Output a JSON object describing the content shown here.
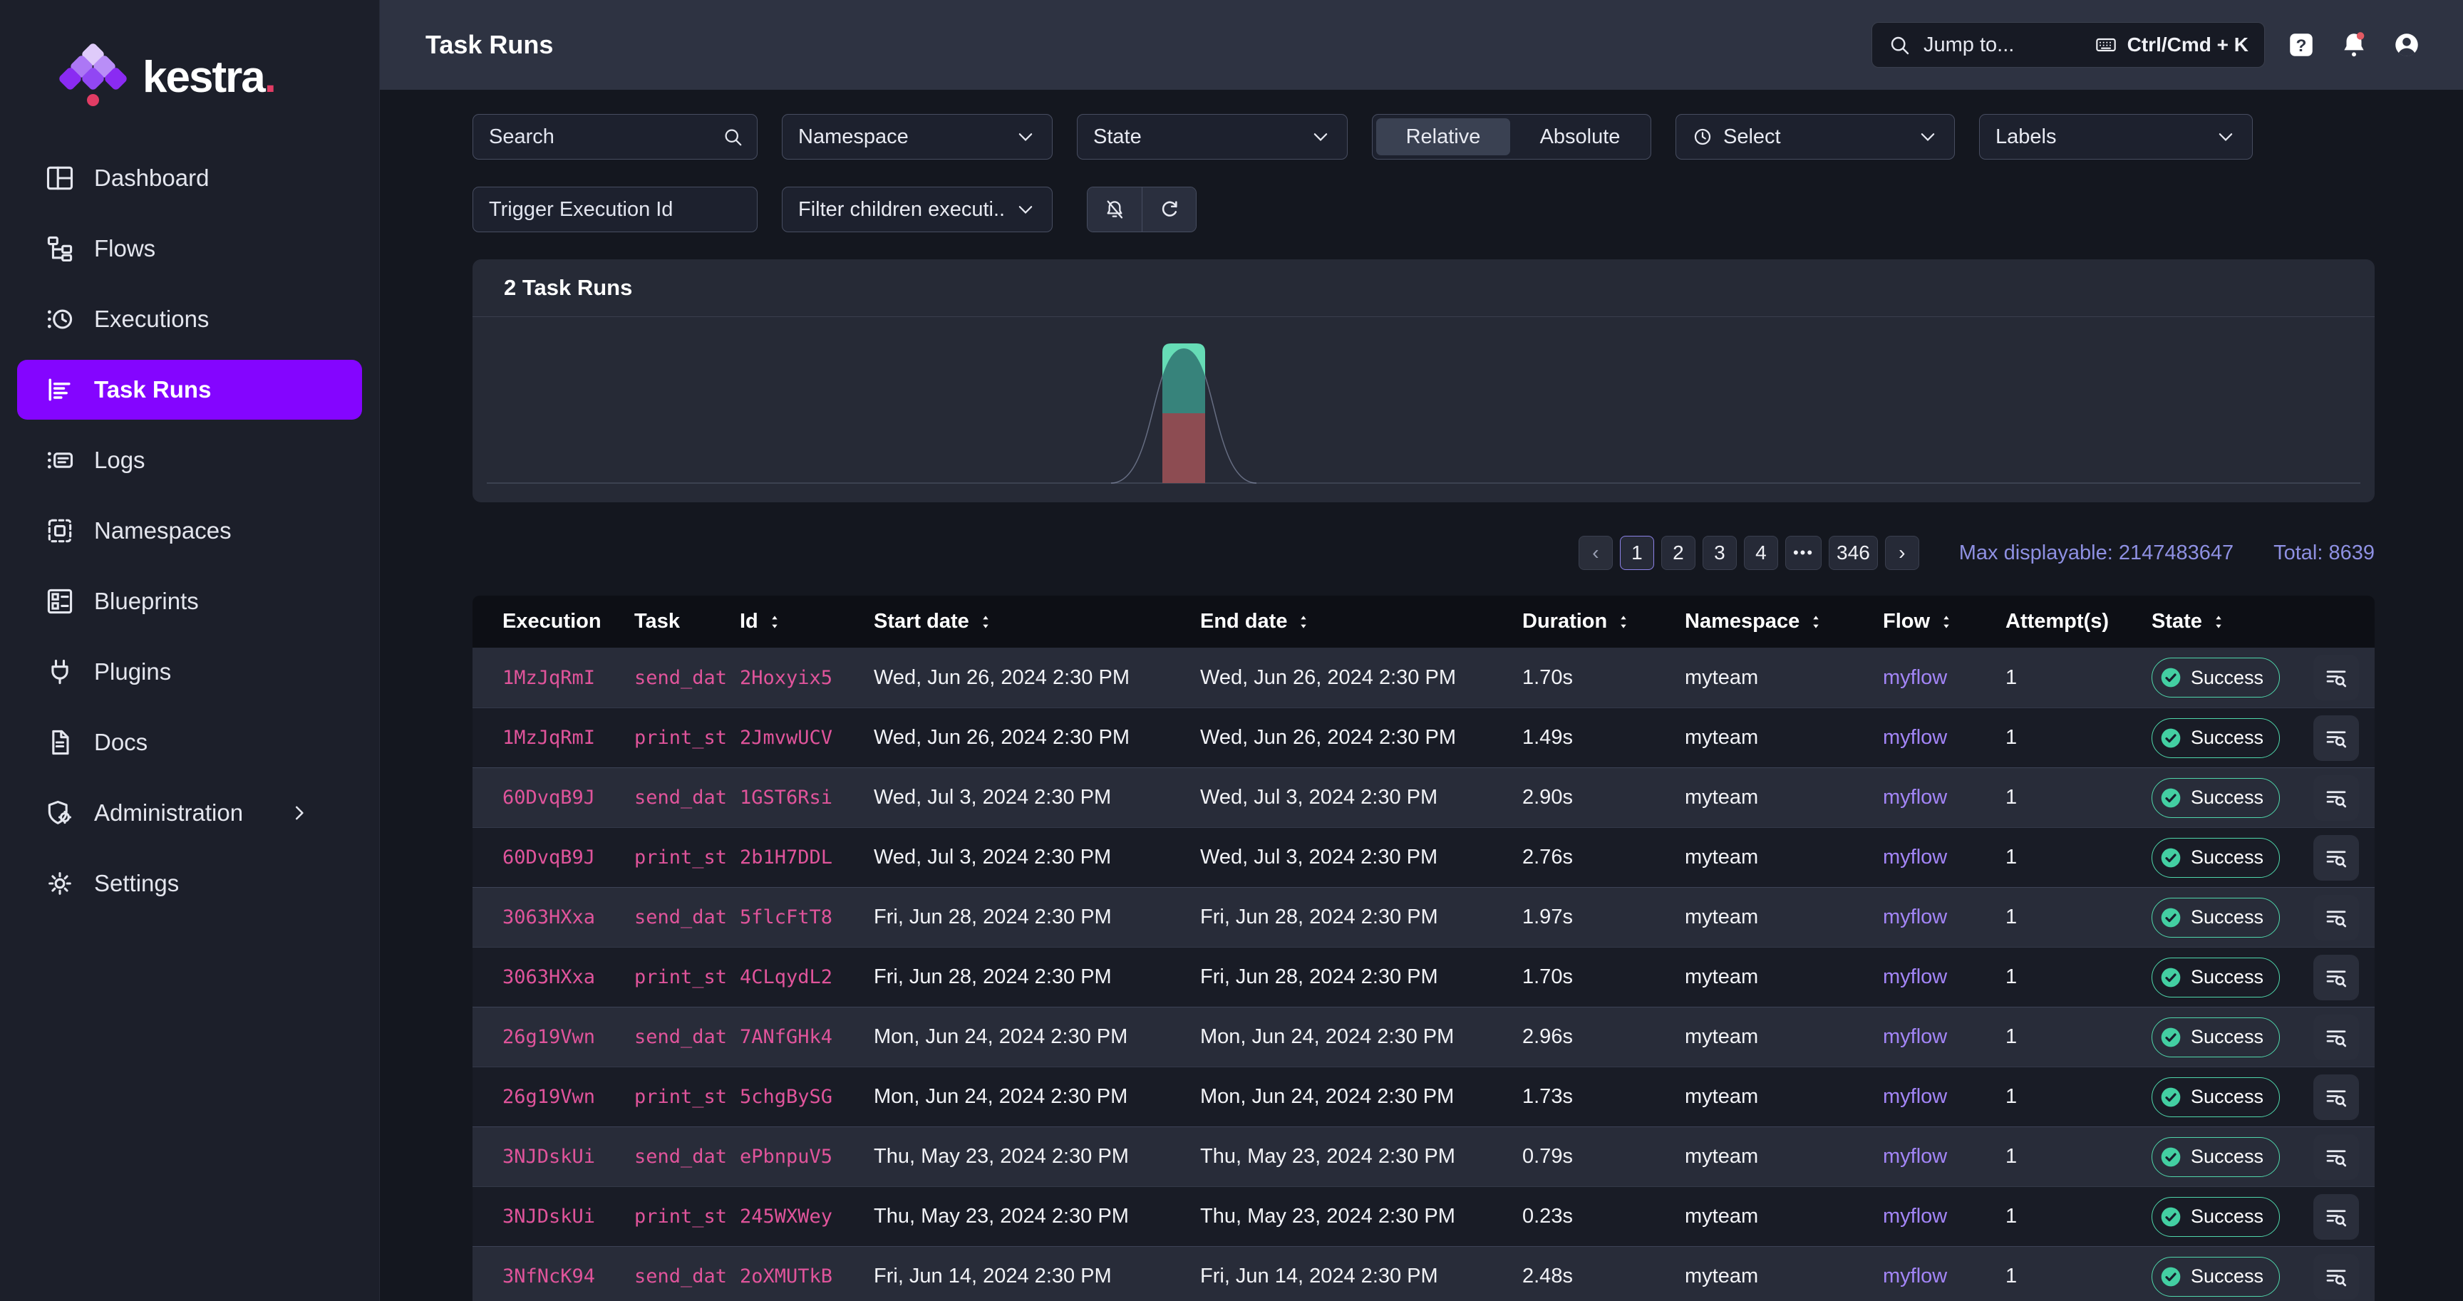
{
  "brand": {
    "name": "kestra",
    "dot": "."
  },
  "sidebar": {
    "items": [
      {
        "id": "dashboard",
        "label": "Dashboard",
        "icon": "dashboard",
        "active": false
      },
      {
        "id": "flows",
        "label": "Flows",
        "icon": "flows",
        "active": false
      },
      {
        "id": "executions",
        "label": "Executions",
        "icon": "executions",
        "active": false
      },
      {
        "id": "task-runs",
        "label": "Task Runs",
        "icon": "task-runs",
        "active": true
      },
      {
        "id": "logs",
        "label": "Logs",
        "icon": "logs",
        "active": false
      },
      {
        "id": "namespaces",
        "label": "Namespaces",
        "icon": "namespaces",
        "active": false
      },
      {
        "id": "blueprints",
        "label": "Blueprints",
        "icon": "blueprints",
        "active": false
      },
      {
        "id": "plugins",
        "label": "Plugins",
        "icon": "plugins",
        "active": false
      },
      {
        "id": "docs",
        "label": "Docs",
        "icon": "docs",
        "active": false
      },
      {
        "id": "administration",
        "label": "Administration",
        "icon": "administration",
        "active": false,
        "chevron": true
      },
      {
        "id": "settings",
        "label": "Settings",
        "icon": "settings",
        "active": false
      }
    ]
  },
  "topbar": {
    "title": "Task Runs",
    "jump_placeholder": "Jump to...",
    "shortcut": "Ctrl/Cmd + K",
    "icons": [
      "search-icon",
      "keyboard-icon",
      "help-icon",
      "bell-icon",
      "account-icon"
    ]
  },
  "filters": {
    "search_placeholder": "Search",
    "namespace_label": "Namespace",
    "state_label": "State",
    "time_toggle": {
      "options": [
        "Relative",
        "Absolute"
      ],
      "selected": "Relative"
    },
    "select_label": "Select",
    "labels_label": "Labels",
    "trigger_placeholder": "Trigger Execution Id",
    "children_label": "Filter children executi...",
    "action_icons": [
      "bell-off-icon",
      "refresh-icon"
    ]
  },
  "summary_card": {
    "title": "2 Task Runs"
  },
  "chart_data": {
    "type": "bar",
    "title": "2 Task Runs",
    "categories": [
      ""
    ],
    "series": [
      {
        "name": "top-segment",
        "values": [
          1
        ],
        "color": "#66DCB6"
      },
      {
        "name": "bottom-segment",
        "values": [
          1
        ],
        "color": "#8D4C52"
      }
    ],
    "overlay_curve": {
      "type": "line",
      "shape": "bell",
      "color": "#8F98B3",
      "peak_x_fraction": 0.374
    },
    "xlabel": "",
    "ylabel": "",
    "legend": false,
    "grid": false,
    "baseline": true
  },
  "pagination": {
    "prev_label": "‹",
    "next_label": "›",
    "pages": [
      {
        "label": "1",
        "active": true
      },
      {
        "label": "2",
        "active": false
      },
      {
        "label": "3",
        "active": false
      },
      {
        "label": "4",
        "active": false
      },
      {
        "label": "•••",
        "active": false,
        "ellipsis": true
      },
      {
        "label": "346",
        "active": false
      }
    ],
    "max_displayable": "Max displayable: 2147483647",
    "total": "Total: 8639"
  },
  "table": {
    "columns": [
      {
        "label": "Execution",
        "sortable": false
      },
      {
        "label": "Task",
        "sortable": false
      },
      {
        "label": "Id",
        "sortable": true
      },
      {
        "label": "Start date",
        "sortable": true
      },
      {
        "label": "End date",
        "sortable": true
      },
      {
        "label": "Duration",
        "sortable": true
      },
      {
        "label": "Namespace",
        "sortable": true
      },
      {
        "label": "Flow",
        "sortable": true
      },
      {
        "label": "Attempt(s)",
        "sortable": false
      },
      {
        "label": "State",
        "sortable": true
      }
    ],
    "rows": [
      {
        "execution": "1MzJqRmI",
        "task": "send_dat",
        "id": "2Hoxyix5",
        "start": "Wed, Jun 26, 2024 2:30 PM",
        "end": "Wed, Jun 26, 2024 2:30 PM",
        "duration": "1.70s",
        "namespace": "myteam",
        "flow": "myflow",
        "attempts": "1",
        "state": "Success"
      },
      {
        "execution": "1MzJqRmI",
        "task": "print_st",
        "id": "2JmvwUCV",
        "start": "Wed, Jun 26, 2024 2:30 PM",
        "end": "Wed, Jun 26, 2024 2:30 PM",
        "duration": "1.49s",
        "namespace": "myteam",
        "flow": "myflow",
        "attempts": "1",
        "state": "Success"
      },
      {
        "execution": "60DvqB9J",
        "task": "send_dat",
        "id": "1GST6Rsi",
        "start": "Wed, Jul 3, 2024 2:30 PM",
        "end": "Wed, Jul 3, 2024 2:30 PM",
        "duration": "2.90s",
        "namespace": "myteam",
        "flow": "myflow",
        "attempts": "1",
        "state": "Success"
      },
      {
        "execution": "60DvqB9J",
        "task": "print_st",
        "id": "2b1H7DDL",
        "start": "Wed, Jul 3, 2024 2:30 PM",
        "end": "Wed, Jul 3, 2024 2:30 PM",
        "duration": "2.76s",
        "namespace": "myteam",
        "flow": "myflow",
        "attempts": "1",
        "state": "Success"
      },
      {
        "execution": "3063HXxa",
        "task": "send_dat",
        "id": "5flcFtT8",
        "start": "Fri, Jun 28, 2024 2:30 PM",
        "end": "Fri, Jun 28, 2024 2:30 PM",
        "duration": "1.97s",
        "namespace": "myteam",
        "flow": "myflow",
        "attempts": "1",
        "state": "Success"
      },
      {
        "execution": "3063HXxa",
        "task": "print_st",
        "id": "4CLqydL2",
        "start": "Fri, Jun 28, 2024 2:30 PM",
        "end": "Fri, Jun 28, 2024 2:30 PM",
        "duration": "1.70s",
        "namespace": "myteam",
        "flow": "myflow",
        "attempts": "1",
        "state": "Success"
      },
      {
        "execution": "26g19Vwn",
        "task": "send_dat",
        "id": "7ANfGHk4",
        "start": "Mon, Jun 24, 2024 2:30 PM",
        "end": "Mon, Jun 24, 2024 2:30 PM",
        "duration": "2.96s",
        "namespace": "myteam",
        "flow": "myflow",
        "attempts": "1",
        "state": "Success"
      },
      {
        "execution": "26g19Vwn",
        "task": "print_st",
        "id": "5chgBySG",
        "start": "Mon, Jun 24, 2024 2:30 PM",
        "end": "Mon, Jun 24, 2024 2:30 PM",
        "duration": "1.73s",
        "namespace": "myteam",
        "flow": "myflow",
        "attempts": "1",
        "state": "Success"
      },
      {
        "execution": "3NJDskUi",
        "task": "send_dat",
        "id": "ePbnpuV5",
        "start": "Thu, May 23, 2024 2:30 PM",
        "end": "Thu, May 23, 2024 2:30 PM",
        "duration": "0.79s",
        "namespace": "myteam",
        "flow": "myflow",
        "attempts": "1",
        "state": "Success"
      },
      {
        "execution": "3NJDskUi",
        "task": "print_st",
        "id": "245WXWey",
        "start": "Thu, May 23, 2024 2:30 PM",
        "end": "Thu, May 23, 2024 2:30 PM",
        "duration": "0.23s",
        "namespace": "myteam",
        "flow": "myflow",
        "attempts": "1",
        "state": "Success"
      },
      {
        "execution": "3NfNcK94",
        "task": "send_dat",
        "id": "2oXMUTkB",
        "start": "Fri, Jun 14, 2024 2:30 PM",
        "end": "Fri, Jun 14, 2024 2:30 PM",
        "duration": "2.48s",
        "namespace": "myteam",
        "flow": "myflow",
        "attempts": "1",
        "state": "Success"
      }
    ]
  },
  "colors": {
    "accent_purple": "#8405FF",
    "link_pink": "#E0549B",
    "link_purple": "#A385F7",
    "success_teal": "#4FD6AA",
    "info_lavender": "#8E90E2",
    "chart_teal": "#66DCB6",
    "chart_teal_dark": "#37837B",
    "chart_red": "#8D4C52",
    "notification_red": "#E25A63"
  }
}
